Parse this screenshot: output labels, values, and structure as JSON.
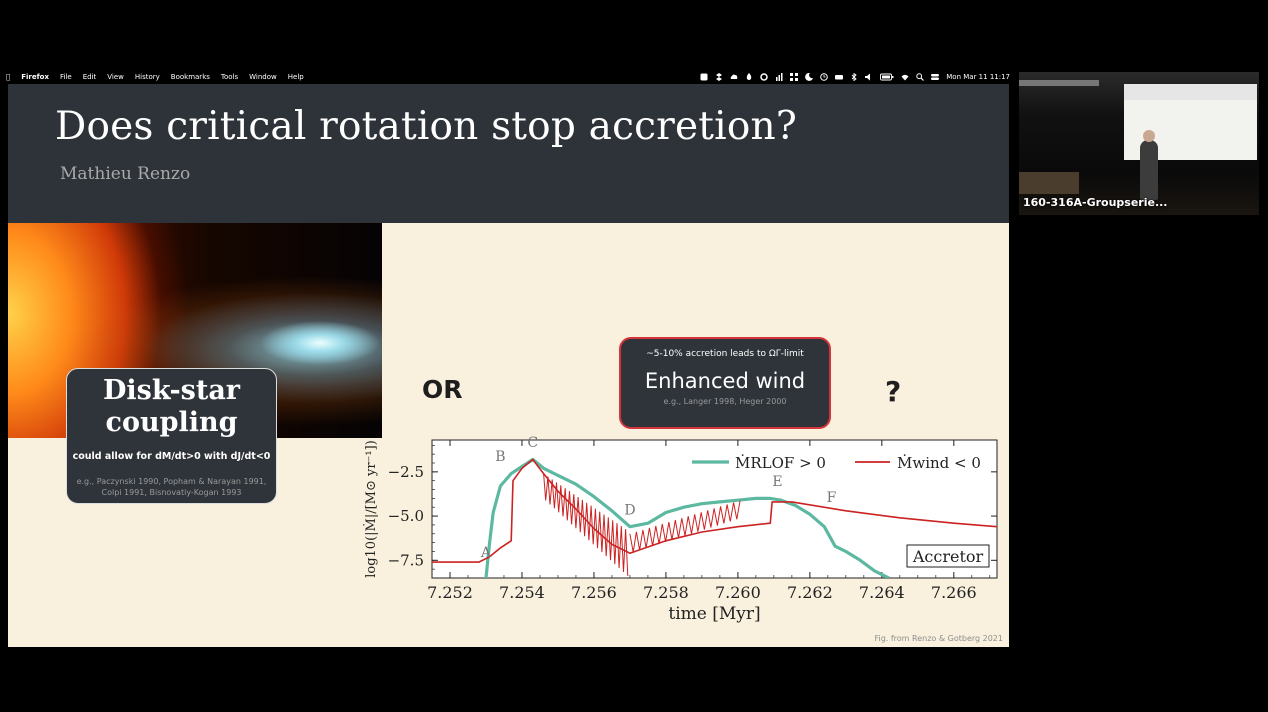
{
  "menubar": {
    "app": "Firefox",
    "items": [
      "File",
      "Edit",
      "View",
      "History",
      "Bookmarks",
      "Tools",
      "Window",
      "Help"
    ],
    "clock": "Mon Mar 11 11:17"
  },
  "slide": {
    "title": "Does critical rotation stop accretion?",
    "author": "Mathieu Renzo",
    "coupling_box": {
      "heading_line1": "Disk-star",
      "heading_line2": "coupling",
      "subtitle": "could  allow for dM/dt>0 with dJ/dt<0",
      "ref_line1": "e.g., Paczynski 1990, Popham & Narayan 1991,",
      "ref_line2": "Colpi 1991, Bisnovatiy-Kogan 1993"
    },
    "or_label": "OR",
    "wind_box": {
      "subtitle": "~5-10% accretion leads to ΩΓ-limit",
      "heading": "Enhanced wind",
      "ref": "e.g., Langer 1998, Heger 2000"
    },
    "question_mark": "?",
    "credit": "Fig. from Renzo & Gotberg 2021"
  },
  "chart_data": {
    "type": "line",
    "xlabel": "time [Myr]",
    "ylabel": "log10(|Ṁ|/[M⊙ yr⁻¹])",
    "xlim": [
      7.2515,
      7.2672
    ],
    "ylim": [
      -8.5,
      -0.7
    ],
    "x_ticks": [
      "7.252",
      "7.254",
      "7.256",
      "7.258",
      "7.260",
      "7.262",
      "7.264",
      "7.266"
    ],
    "y_ticks": [
      "−2.5",
      "−5.0",
      "−7.5"
    ],
    "legend_position": "top-right",
    "series": [
      {
        "name": "ṀRLOF > 0",
        "color": "#5cb8a0",
        "x": [
          7.253,
          7.2531,
          7.2532,
          7.2534,
          7.2537,
          7.254,
          7.2543,
          7.2546,
          7.255,
          7.2555,
          7.256,
          7.2565,
          7.257,
          7.2575,
          7.258,
          7.2585,
          7.259,
          7.2595,
          7.26,
          7.2605,
          7.2609,
          7.2612,
          7.2616,
          7.262,
          7.2624,
          7.2627,
          7.263,
          7.2634,
          7.2638,
          7.2642
        ],
        "values": [
          -8.5,
          -6.5,
          -4.8,
          -3.3,
          -2.6,
          -2.2,
          -1.8,
          -2.3,
          -2.7,
          -3.2,
          -3.9,
          -4.7,
          -5.6,
          -5.4,
          -4.8,
          -4.5,
          -4.3,
          -4.2,
          -4.1,
          -4.0,
          -4.0,
          -4.1,
          -4.4,
          -4.9,
          -5.6,
          -6.7,
          -7.0,
          -7.5,
          -8.1,
          -8.5
        ]
      },
      {
        "name": "Ṁwind < 0",
        "color": "#cc2222",
        "x": [
          7.2515,
          7.2528,
          7.2531,
          7.2534,
          7.2537,
          7.25375,
          7.254,
          7.2543,
          7.2546,
          7.255,
          7.2555,
          7.256,
          7.2565,
          7.257,
          7.258,
          7.259,
          7.26,
          7.2609,
          7.26095,
          7.2615,
          7.263,
          7.2645,
          7.266,
          7.2672
        ],
        "values": [
          -7.6,
          -7.6,
          -7.3,
          -6.8,
          -6.4,
          -3.0,
          -2.3,
          -1.8,
          -2.6,
          -3.6,
          -4.6,
          -5.7,
          -6.6,
          -7.1,
          -6.4,
          -5.9,
          -5.6,
          -5.4,
          -4.2,
          -4.2,
          -4.7,
          -5.1,
          -5.4,
          -5.6
        ]
      }
    ],
    "annotations": [
      {
        "label": "A",
        "x": 7.253,
        "y": -7.3
      },
      {
        "label": "B",
        "x": 7.2534,
        "y": -1.9
      },
      {
        "label": "C",
        "x": 7.2543,
        "y": -1.1
      },
      {
        "label": "D",
        "x": 7.257,
        "y": -4.9
      },
      {
        "label": "E",
        "x": 7.2611,
        "y": -3.3
      },
      {
        "label": "F",
        "x": 7.2626,
        "y": -4.2
      }
    ],
    "inset_label": "Accretor"
  },
  "webcam": {
    "name": "160-316A-Groupserie..."
  }
}
